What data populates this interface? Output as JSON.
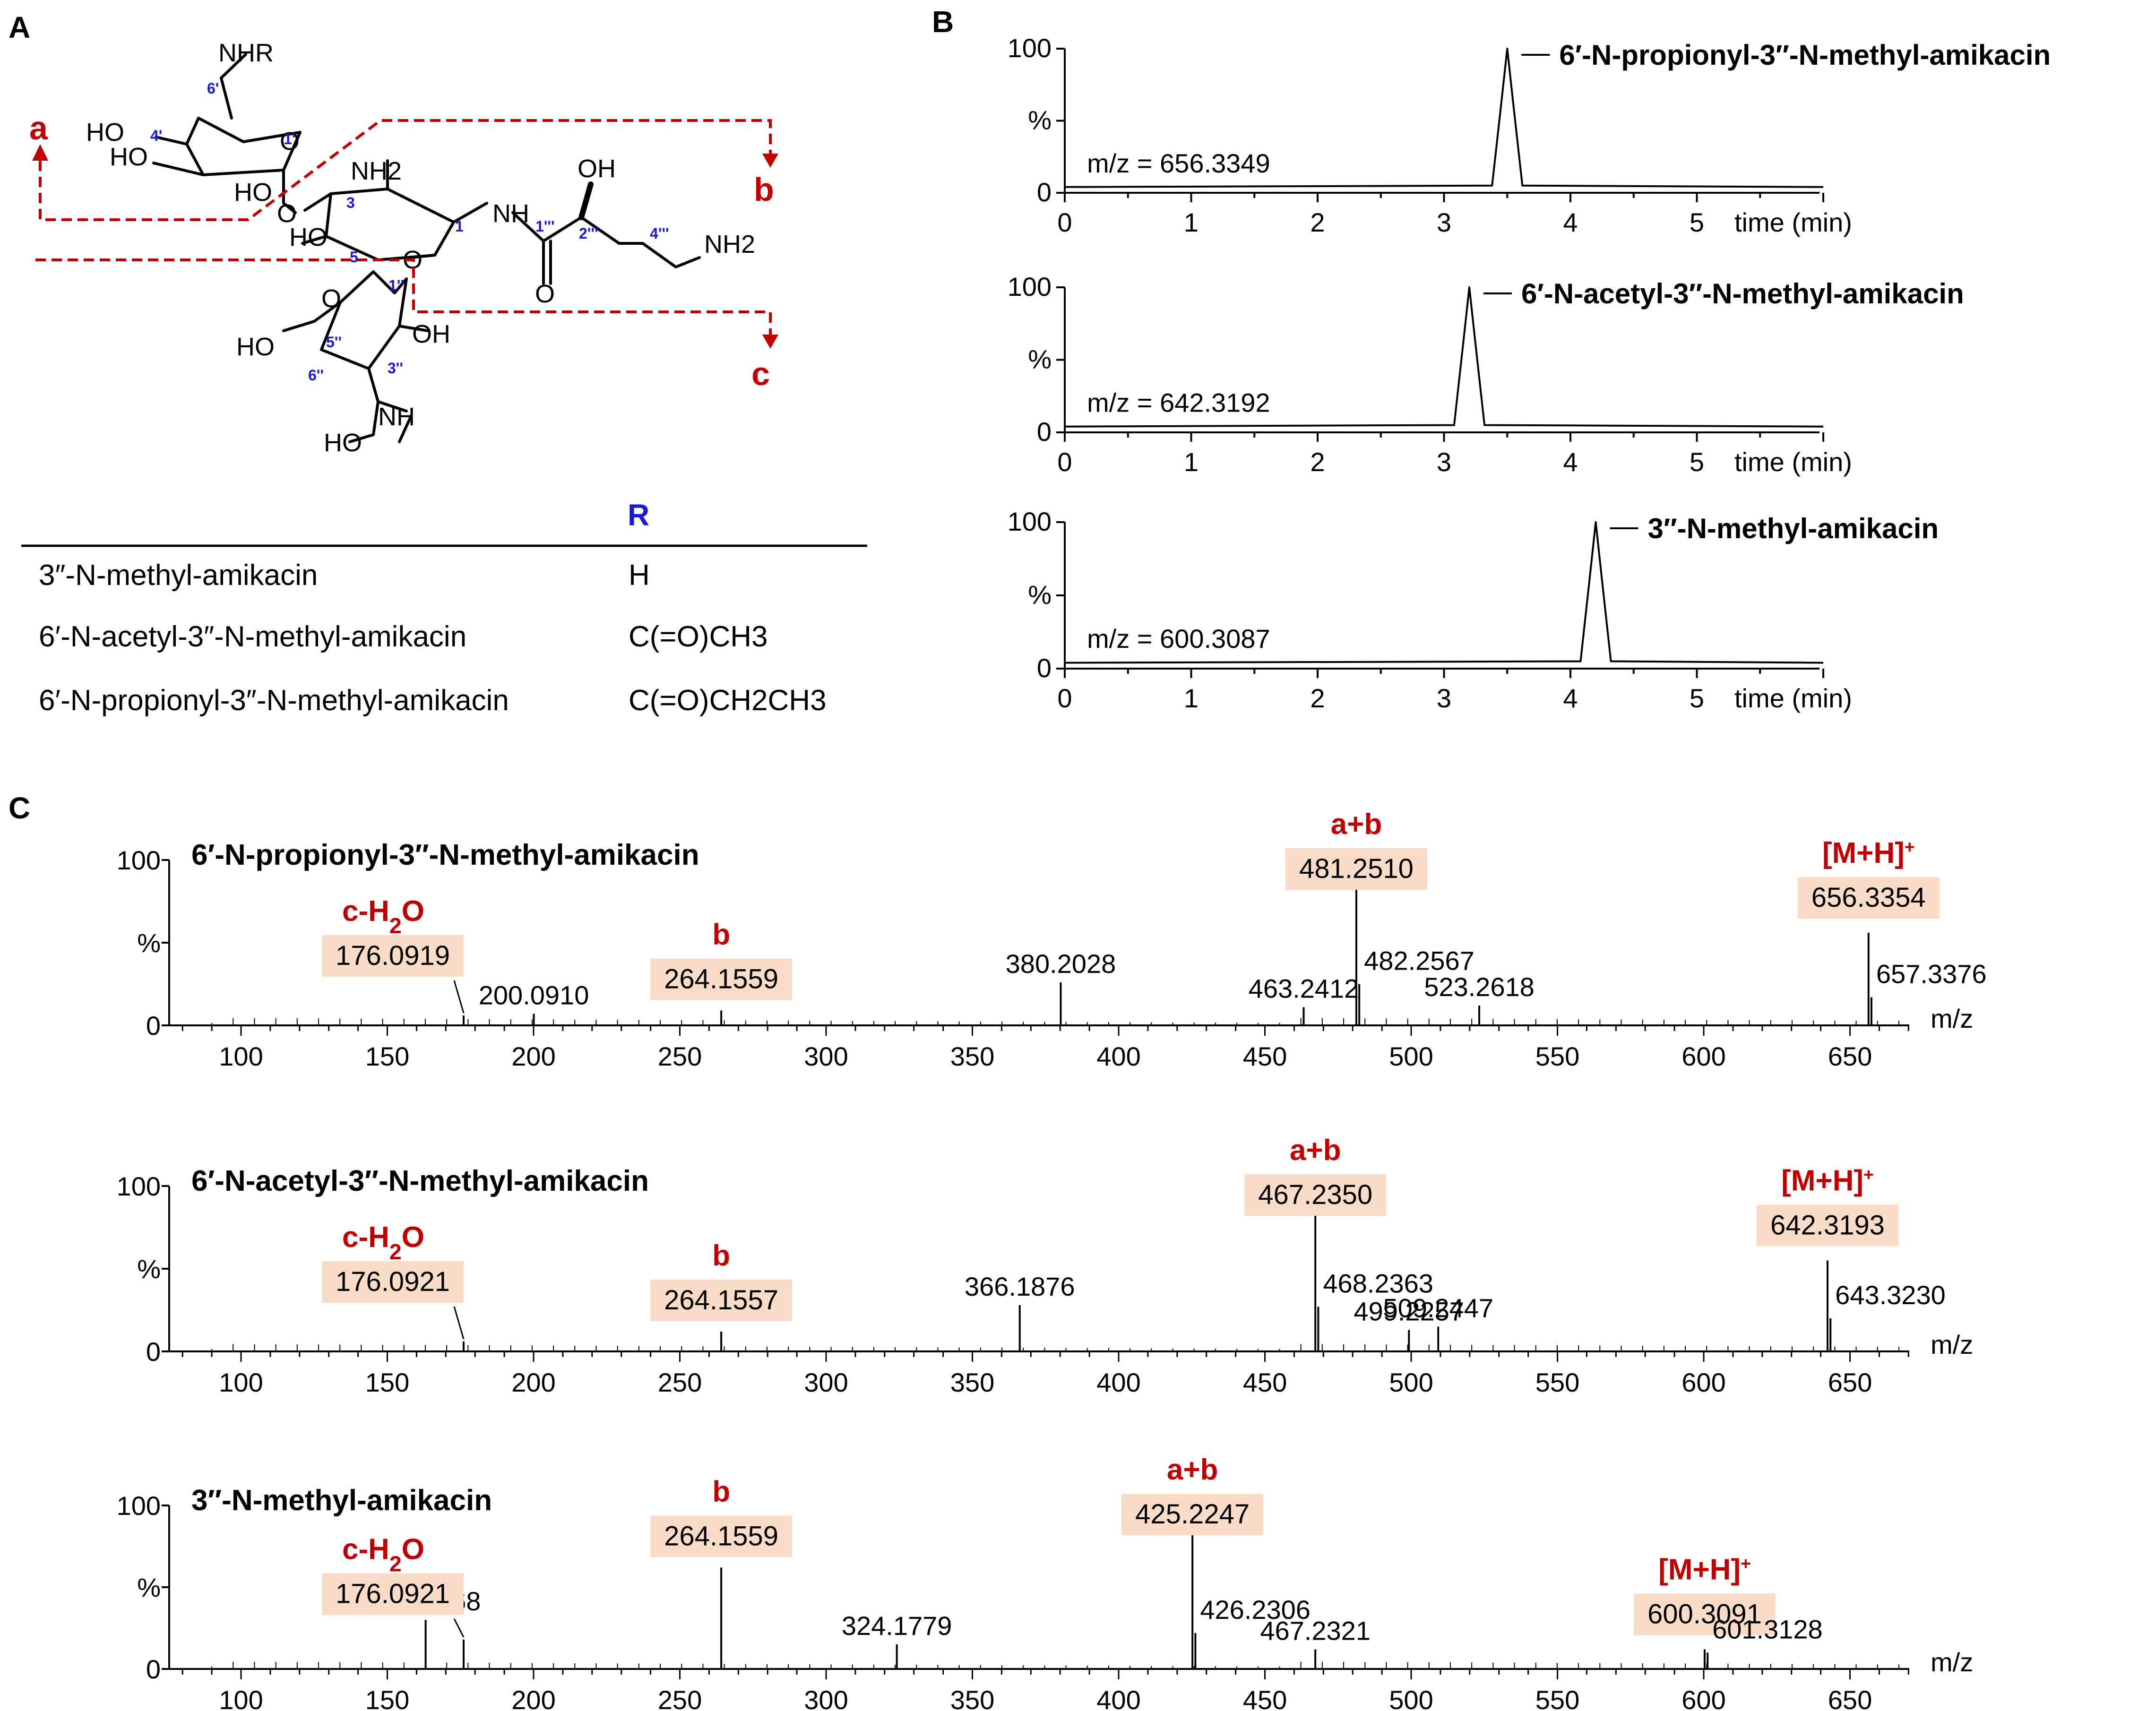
{
  "panels": {
    "A": "A",
    "B": "B",
    "C": "C"
  },
  "panelA": {
    "structure": {
      "group_NHR": "NHR",
      "HO_1": "HO",
      "HO_2": "HO",
      "HO_3": "HO",
      "HO_4": "HO",
      "HO_5": "HO",
      "HO_6": "HO",
      "OH_top": "OH",
      "OH_right": "OH",
      "NH2_ring": "NH2",
      "NH2_chain": "NH2",
      "NH_amide": "NH",
      "NH_methyl": "NH",
      "O_glyco_1": "O",
      "O_glyco_2": "O",
      "O_ring_1": "O",
      "O_ring_2": "O",
      "O_carbonyl": "O",
      "cleave_a": "a",
      "cleave_b": "b",
      "cleave_c": "c",
      "num_6p": "6'",
      "num_4p": "4'",
      "num_1p": "1'",
      "num_3": "3",
      "num_1": "1",
      "num_5": "5",
      "num_1ppp": "1'''",
      "num_2ppp": "2'''",
      "num_4ppp": "4'''",
      "num_1pp": "1''",
      "num_5pp": "5''",
      "num_6pp": "6''",
      "num_3pp": "3''"
    },
    "table": {
      "header_R": "R",
      "rows": [
        {
          "name": "3″-N-methyl-amikacin",
          "r": "H"
        },
        {
          "name": "6′-N-acetyl-3″-N-methyl-amikacin",
          "r": "C(=O)CH3"
        },
        {
          "name": "6′-N-propionyl-3″-N-methyl-amikacin",
          "r": "C(=O)CH2CH3"
        }
      ]
    }
  },
  "panelB": {
    "y_ticks": [
      "100",
      "%",
      "0"
    ],
    "x_ticks": [
      "0",
      "1",
      "2",
      "3",
      "4",
      "5"
    ],
    "xlabel": "time (min)",
    "chromatograms": [
      {
        "compound": "6′-N-propionyl-3″-N-methyl-amikacin",
        "mz_label": "m/z = 656.3349",
        "retention_time": 3.5
      },
      {
        "compound": "6′-N-acetyl-3″-N-methyl-amikacin",
        "mz_label": "m/z = 642.3192",
        "retention_time": 3.2
      },
      {
        "compound": "3″-N-methyl-amikacin",
        "mz_label": "m/z = 600.3087",
        "retention_time": 4.2
      }
    ]
  },
  "panelC": {
    "y_ticks": [
      "100",
      "%",
      "0"
    ],
    "x_ticks": [
      "100",
      "150",
      "200",
      "250",
      "300",
      "350",
      "400",
      "450",
      "500",
      "550",
      "600",
      "650"
    ],
    "xlabel": "m/z",
    "annot_ab": "a+b",
    "annot_b": "b",
    "annot_c": "c-H2O",
    "annot_mh": "[M+H]+"
  },
  "chart_data": [
    {
      "type": "line",
      "title": "6′-N-propionyl-3″-N-methyl-amikacin",
      "label": "m/z = 656.3349",
      "xlabel": "time (min)",
      "ylabel": "%",
      "xlim": [
        0,
        6
      ],
      "ylim": [
        0,
        100
      ],
      "series": [
        {
          "x": [
            0,
            3.38,
            3.45,
            3.5,
            3.55,
            3.62,
            6
          ],
          "values": [
            4,
            5,
            60,
            100,
            60,
            5,
            4
          ]
        }
      ]
    },
    {
      "type": "line",
      "title": "6′-N-acetyl-3″-N-methyl-amikacin",
      "label": "m/z = 642.3192",
      "xlabel": "time (min)",
      "ylabel": "%",
      "xlim": [
        0,
        6
      ],
      "ylim": [
        0,
        100
      ],
      "series": [
        {
          "x": [
            0,
            3.08,
            3.15,
            3.2,
            3.25,
            3.32,
            6
          ],
          "values": [
            4,
            5,
            60,
            100,
            60,
            5,
            4
          ]
        }
      ]
    },
    {
      "type": "line",
      "title": "3″-N-methyl-amikacin",
      "label": "m/z = 600.3087",
      "xlabel": "time (min)",
      "ylabel": "%",
      "xlim": [
        0,
        6
      ],
      "ylim": [
        0,
        100
      ],
      "series": [
        {
          "x": [
            0,
            4.08,
            4.15,
            4.2,
            4.25,
            4.32,
            6
          ],
          "values": [
            4,
            5,
            60,
            100,
            60,
            5,
            4
          ]
        }
      ]
    },
    {
      "type": "bar",
      "title": "6′-N-propionyl-3″-N-methyl-amikacin",
      "xlabel": "m/z",
      "ylabel": "%",
      "xlim": [
        75,
        675
      ],
      "ylim": [
        0,
        100
      ],
      "peaks": [
        {
          "mz": 176.0919,
          "intensity": 6,
          "label": "176.0919",
          "box": true,
          "annot": "c-H2O"
        },
        {
          "mz": 200.091,
          "intensity": 7,
          "label": "200.0910"
        },
        {
          "mz": 264.1559,
          "intensity": 9,
          "label": "264.1559",
          "box": true,
          "annot": "b"
        },
        {
          "mz": 380.2028,
          "intensity": 26,
          "label": "380.2028"
        },
        {
          "mz": 463.2412,
          "intensity": 11,
          "label": "463.2412"
        },
        {
          "mz": 481.251,
          "intensity": 100,
          "label": "481.2510",
          "box": true,
          "annot": "a+b"
        },
        {
          "mz": 482.2567,
          "intensity": 25,
          "label": "482.2567"
        },
        {
          "mz": 523.2618,
          "intensity": 12,
          "label": "523.2618"
        },
        {
          "mz": 656.3354,
          "intensity": 56,
          "label": "656.3354",
          "box": true,
          "annot": "[M+H]+"
        },
        {
          "mz": 657.3376,
          "intensity": 17,
          "label": "657.3376"
        }
      ]
    },
    {
      "type": "bar",
      "title": "6′-N-acetyl-3″-N-methyl-amikacin",
      "xlabel": "m/z",
      "ylabel": "%",
      "xlim": [
        75,
        675
      ],
      "ylim": [
        0,
        100
      ],
      "peaks": [
        {
          "mz": 176.0921,
          "intensity": 6,
          "label": "176.0921",
          "box": true,
          "annot": "c-H2O"
        },
        {
          "mz": 264.1557,
          "intensity": 12,
          "label": "264.1557",
          "box": true,
          "annot": "b"
        },
        {
          "mz": 366.1876,
          "intensity": 28,
          "label": "366.1876"
        },
        {
          "mz": 467.235,
          "intensity": 100,
          "label": "467.2350",
          "box": true,
          "annot": "a+b"
        },
        {
          "mz": 468.2363,
          "intensity": 27,
          "label": "468.2363"
        },
        {
          "mz": 499.2257,
          "intensity": 13,
          "label": "499.2257"
        },
        {
          "mz": 509.2447,
          "intensity": 15,
          "label": "509.2447"
        },
        {
          "mz": 642.3193,
          "intensity": 55,
          "label": "642.3193",
          "box": true,
          "annot": "[M+H]+"
        },
        {
          "mz": 643.323,
          "intensity": 20,
          "label": "643.3230"
        }
      ]
    },
    {
      "type": "bar",
      "title": "3″-N-methyl-amikacin",
      "xlabel": "m/z",
      "ylabel": "%",
      "xlim": [
        75,
        675
      ],
      "ylim": [
        0,
        100
      ],
      "peaks": [
        {
          "mz": 163.1068,
          "intensity": 30,
          "label": "163.1068"
        },
        {
          "mz": 176.0921,
          "intensity": 18,
          "label": "176.0921",
          "box": true,
          "annot": "c-H2O"
        },
        {
          "mz": 264.1559,
          "intensity": 62,
          "label": "264.1559",
          "box": true,
          "annot": "b"
        },
        {
          "mz": 324.1779,
          "intensity": 15,
          "label": "324.1779"
        },
        {
          "mz": 425.2247,
          "intensity": 100,
          "label": "425.2247",
          "box": true,
          "annot": "a+b"
        },
        {
          "mz": 426.2306,
          "intensity": 22,
          "label": "426.2306"
        },
        {
          "mz": 467.2321,
          "intensity": 12,
          "label": "467.2321"
        },
        {
          "mz": 600.3091,
          "intensity": 12,
          "label": "600.3091",
          "box": true,
          "annot": "[M+H]+"
        },
        {
          "mz": 601.3128,
          "intensity": 10,
          "label": "601.3128"
        }
      ]
    }
  ]
}
